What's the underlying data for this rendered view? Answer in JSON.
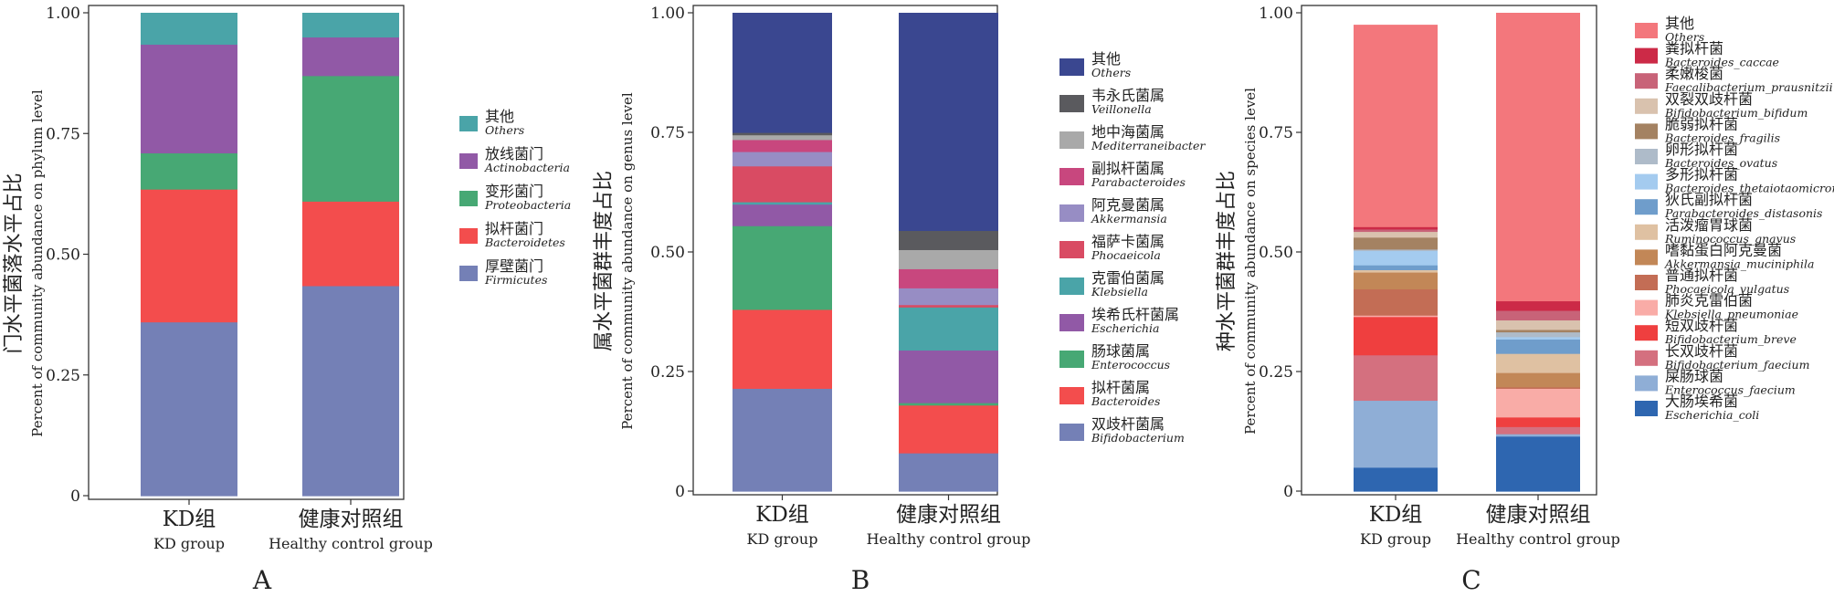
{
  "chart_data": [
    {
      "type": "bar",
      "stacked": true,
      "panel_label": "A",
      "ylabel_cn": "门水平菌落水平占比",
      "ylabel_en": "Percent of community abundance on phylum level",
      "ylim": [
        0,
        1
      ],
      "yticks": [
        "0",
        "0.25",
        "0.50",
        "0.75",
        "1.00"
      ],
      "categories": [
        {
          "cn": "KD组",
          "en": "KD group"
        },
        {
          "cn": "健康对照组",
          "en": "Healthy control group"
        }
      ],
      "series": [
        {
          "name_cn": "厚壁菌门",
          "name_en": "Firmicutes",
          "color": "#7480b6",
          "values": [
            0.36,
            0.435
          ]
        },
        {
          "name_cn": "拟杆菌门",
          "name_en": "Bacteroidetes",
          "color": "#f34d4d",
          "values": [
            0.275,
            0.175
          ]
        },
        {
          "name_cn": "变形菌门",
          "name_en": "Proteobacteria",
          "color": "#47a874",
          "values": [
            0.075,
            0.26
          ]
        },
        {
          "name_cn": "放线菌门",
          "name_en": "Actinobacteria",
          "color": "#9159a6",
          "values": [
            0.225,
            0.08
          ]
        },
        {
          "name_cn": "其他",
          "name_en": "Others",
          "color": "#4aa4a8",
          "values": [
            0.065,
            0.05
          ]
        }
      ]
    },
    {
      "type": "bar",
      "stacked": true,
      "panel_label": "B",
      "ylabel_cn": "属水平菌群丰度占比",
      "ylabel_en": "Percent of community abundance on genus level",
      "ylim": [
        0,
        1
      ],
      "yticks": [
        "0",
        "0.25",
        "0.50",
        "0.75",
        "1.00"
      ],
      "categories": [
        {
          "cn": "KD组",
          "en": "KD group"
        },
        {
          "cn": "健康对照组",
          "en": "Healthy control group"
        }
      ],
      "series": [
        {
          "name_cn": "双歧杆菌属",
          "name_en": "Bifidobacterium",
          "color": "#7480b6",
          "values": [
            0.215,
            0.08
          ]
        },
        {
          "name_cn": "拟杆菌属",
          "name_en": "Bacteroides",
          "color": "#f34d4d",
          "values": [
            0.165,
            0.1
          ]
        },
        {
          "name_cn": "肠球菌属",
          "name_en": "Enterococcus",
          "color": "#47a874",
          "values": [
            0.175,
            0.005
          ]
        },
        {
          "name_cn": "埃希氏杆菌属",
          "name_en": "Escherichia",
          "color": "#9159a6",
          "values": [
            0.045,
            0.11
          ]
        },
        {
          "name_cn": "克雷伯菌属",
          "name_en": "Klebsiella",
          "color": "#4aa4a8",
          "values": [
            0.005,
            0.09
          ]
        },
        {
          "name_cn": "福萨卡菌属",
          "name_en": "Phocaeicola",
          "color": "#d94b63",
          "values": [
            0.075,
            0.005
          ]
        },
        {
          "name_cn": "阿克曼菌属",
          "name_en": "Akkermansia",
          "color": "#978dc4",
          "values": [
            0.03,
            0.035
          ]
        },
        {
          "name_cn": "副拟杆菌属",
          "name_en": "Parabacteroides",
          "color": "#c8477e",
          "values": [
            0.025,
            0.04
          ]
        },
        {
          "name_cn": "地中海菌属",
          "name_en": "Mediterraneibacter",
          "color": "#a9a9a9",
          "values": [
            0.01,
            0.04
          ]
        },
        {
          "name_cn": "韦永氏菌属",
          "name_en": "Veillonella",
          "color": "#5a5a5e",
          "values": [
            0.005,
            0.04
          ]
        },
        {
          "name_cn": "其他",
          "name_en": "Others",
          "color": "#3a4790",
          "values": [
            0.25,
            0.455
          ]
        }
      ]
    },
    {
      "type": "bar",
      "stacked": true,
      "panel_label": "C",
      "ylabel_cn": "种水平菌群丰度占比",
      "ylabel_en": "Percent of community abundance on species level",
      "ylim": [
        0,
        1
      ],
      "yticks": [
        "0",
        "0.25",
        "0.50",
        "0.75",
        "1.00"
      ],
      "categories": [
        {
          "cn": "KD组",
          "en": "KD group"
        },
        {
          "cn": "健康对照组",
          "en": "Healthy control group"
        }
      ],
      "series": [
        {
          "name_cn": "大肠埃希菌",
          "name_en": "Escherichia_coli",
          "color": "#2e66b0",
          "values": [
            0.05,
            0.115
          ]
        },
        {
          "name_cn": "屎肠球菌",
          "name_en": "Enterococcus_faecium",
          "color": "#8faed6",
          "values": [
            0.14,
            0.005
          ]
        },
        {
          "name_cn": "长双歧杆菌",
          "name_en": "Bifidobacterium_faecium",
          "color": "#d4707f",
          "values": [
            0.095,
            0.015
          ]
        },
        {
          "name_cn": "短双歧杆菌",
          "name_en": "Bifidobacterium_breve",
          "color": "#ef3f3f",
          "values": [
            0.08,
            0.02
          ]
        },
        {
          "name_cn": "肺炎克雷伯菌",
          "name_en": "Klebsiella_pneumoniae",
          "color": "#f9aca7",
          "values": [
            0.003,
            0.06
          ]
        },
        {
          "name_cn": "普通拟杆菌",
          "name_en": "Phocaeicola_vulgatus",
          "color": "#c36d55",
          "values": [
            0.055,
            0.003
          ]
        },
        {
          "name_cn": "嗜黏蛋白阿克曼菌",
          "name_en": "Akkermansia_muciniphila",
          "color": "#c28757",
          "values": [
            0.035,
            0.03
          ]
        },
        {
          "name_cn": "活泼瘤胃球菌",
          "name_en": "Ruminococcus_gnavus",
          "color": "#dfc1a2",
          "values": [
            0.005,
            0.04
          ]
        },
        {
          "name_cn": "狄氏副拟杆菌",
          "name_en": "Parabacteroides_distasonis",
          "color": "#6f9dcb",
          "values": [
            0.01,
            0.03
          ]
        },
        {
          "name_cn": "多形拟杆菌",
          "name_en": "Bacteroides_thetaiotaomicron",
          "color": "#a4cbef",
          "values": [
            0.03,
            0.005
          ]
        },
        {
          "name_cn": "卵形拟杆菌",
          "name_en": "Bacteroides_ovatus",
          "color": "#aebbc9",
          "values": [
            0.003,
            0.01
          ]
        },
        {
          "name_cn": "脆弱拟杆菌",
          "name_en": "Bacteroides_fragilis",
          "color": "#a48262",
          "values": [
            0.025,
            0.005
          ]
        },
        {
          "name_cn": "双裂双歧杆菌",
          "name_en": "Bifidobacterium_bifidum",
          "color": "#d9c2ae",
          "values": [
            0.012,
            0.02
          ]
        },
        {
          "name_cn": "柔嫩梭菌",
          "name_en": "Faecalibacterium_prausnitzii",
          "color": "#c86378",
          "values": [
            0.005,
            0.02
          ]
        },
        {
          "name_cn": "粪拟杆菌",
          "name_en": "Bacteroides_caccae",
          "color": "#cc2a47",
          "values": [
            0.005,
            0.02
          ]
        },
        {
          "name_cn": "其他",
          "name_en": "Others",
          "color": "#f3777c",
          "values": [
            0.422,
            0.602
          ]
        }
      ]
    }
  ]
}
